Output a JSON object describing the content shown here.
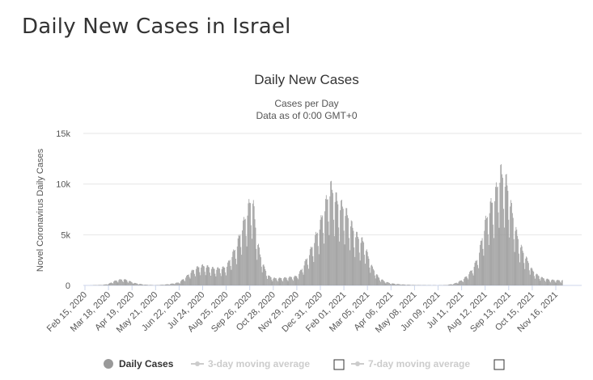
{
  "page": {
    "title": "Daily New Cases in Israel"
  },
  "chart_data": {
    "type": "bar",
    "title": "Daily New Cases",
    "subtitle_lines": [
      "Cases per Day",
      "Data as of 0:00 GMT+0"
    ],
    "ylabel": "Novel Coronavirus Daily Cases",
    "xlabel": "",
    "ylim": [
      0,
      15000
    ],
    "yticks": [
      0,
      5000,
      10000,
      15000
    ],
    "ytick_labels": [
      "0",
      "5k",
      "10k",
      "15k"
    ],
    "xticks": [
      "Feb 15, 2020",
      "Mar 18, 2020",
      "Apr 19, 2020",
      "May 21, 2020",
      "Jun 22, 2020",
      "Jul 24, 2020",
      "Aug 25, 2020",
      "Sep 26, 2020",
      "Oct 28, 2020",
      "Nov 29, 2020",
      "Dec 31, 2020",
      "Feb 01, 2021",
      "Mar 05, 2021",
      "Apr 06, 2021",
      "May 08, 2021",
      "Jun 09, 2021",
      "Jul 11, 2021",
      "Aug 12, 2021",
      "Sep 13, 2021",
      "Oct 15, 2021",
      "Nov 16, 2021"
    ],
    "grid": true,
    "bar_color": "#999999",
    "series": [
      {
        "name": "Daily Cases",
        "points": [
          [
            "2020-02-15",
            0
          ],
          [
            "2020-03-10",
            50
          ],
          [
            "2020-03-18",
            150
          ],
          [
            "2020-03-25",
            400
          ],
          [
            "2020-04-01",
            550
          ],
          [
            "2020-04-08",
            600
          ],
          [
            "2020-04-15",
            450
          ],
          [
            "2020-04-19",
            300
          ],
          [
            "2020-04-25",
            200
          ],
          [
            "2020-05-05",
            80
          ],
          [
            "2020-05-21",
            20
          ],
          [
            "2020-06-05",
            100
          ],
          [
            "2020-06-15",
            200
          ],
          [
            "2020-06-22",
            300
          ],
          [
            "2020-07-01",
            800
          ],
          [
            "2020-07-08",
            1300
          ],
          [
            "2020-07-15",
            1700
          ],
          [
            "2020-07-24",
            1900
          ],
          [
            "2020-08-01",
            1800
          ],
          [
            "2020-08-10",
            1600
          ],
          [
            "2020-08-20",
            1700
          ],
          [
            "2020-08-25",
            1800
          ],
          [
            "2020-09-01",
            2800
          ],
          [
            "2020-09-08",
            3800
          ],
          [
            "2020-09-15",
            5500
          ],
          [
            "2020-09-22",
            7000
          ],
          [
            "2020-09-26",
            8000
          ],
          [
            "2020-09-30",
            8500
          ],
          [
            "2020-10-05",
            5000
          ],
          [
            "2020-10-10",
            3000
          ],
          [
            "2020-10-16",
            1700
          ],
          [
            "2020-10-22",
            900
          ],
          [
            "2020-10-28",
            700
          ],
          [
            "2020-11-05",
            700
          ],
          [
            "2020-11-15",
            750
          ],
          [
            "2020-11-29",
            900
          ],
          [
            "2020-12-05",
            1500
          ],
          [
            "2020-12-12",
            2500
          ],
          [
            "2020-12-20",
            3800
          ],
          [
            "2020-12-26",
            5000
          ],
          [
            "2020-12-31",
            6000
          ],
          [
            "2021-01-05",
            7500
          ],
          [
            "2021-01-10",
            8500
          ],
          [
            "2021-01-14",
            9500
          ],
          [
            "2021-01-18",
            9000
          ],
          [
            "2021-01-24",
            8000
          ],
          [
            "2021-02-01",
            7500
          ],
          [
            "2021-02-08",
            6500
          ],
          [
            "2021-02-15",
            5200
          ],
          [
            "2021-02-22",
            4500
          ],
          [
            "2021-03-01",
            4200
          ],
          [
            "2021-03-05",
            3000
          ],
          [
            "2021-03-12",
            1700
          ],
          [
            "2021-03-20",
            800
          ],
          [
            "2021-03-28",
            400
          ],
          [
            "2021-04-06",
            200
          ],
          [
            "2021-04-20",
            100
          ],
          [
            "2021-05-08",
            40
          ],
          [
            "2021-06-09",
            15
          ],
          [
            "2021-06-20",
            40
          ],
          [
            "2021-06-30",
            150
          ],
          [
            "2021-07-05",
            300
          ],
          [
            "2021-07-11",
            500
          ],
          [
            "2021-07-18",
            900
          ],
          [
            "2021-07-25",
            1500
          ],
          [
            "2021-08-01",
            2500
          ],
          [
            "2021-08-06",
            4000
          ],
          [
            "2021-08-12",
            6000
          ],
          [
            "2021-08-18",
            7500
          ],
          [
            "2021-08-24",
            8500
          ],
          [
            "2021-08-30",
            10000
          ],
          [
            "2021-09-02",
            11000
          ],
          [
            "2021-09-06",
            10500
          ],
          [
            "2021-09-10",
            10000
          ],
          [
            "2021-09-13",
            9000
          ],
          [
            "2021-09-18",
            7000
          ],
          [
            "2021-09-24",
            5000
          ],
          [
            "2021-10-01",
            3500
          ],
          [
            "2021-10-08",
            2500
          ],
          [
            "2021-10-15",
            1500
          ],
          [
            "2021-10-22",
            1000
          ],
          [
            "2021-10-30",
            700
          ],
          [
            "2021-11-08",
            550
          ],
          [
            "2021-11-16",
            500
          ],
          [
            "2021-11-25",
            500
          ]
        ]
      }
    ],
    "legend": {
      "placement": "bottom",
      "items": [
        {
          "label": "Daily Cases",
          "enabled": true
        },
        {
          "label": "3-day moving average",
          "enabled": false
        },
        {
          "label": "7-day moving average",
          "enabled": false
        }
      ]
    }
  }
}
